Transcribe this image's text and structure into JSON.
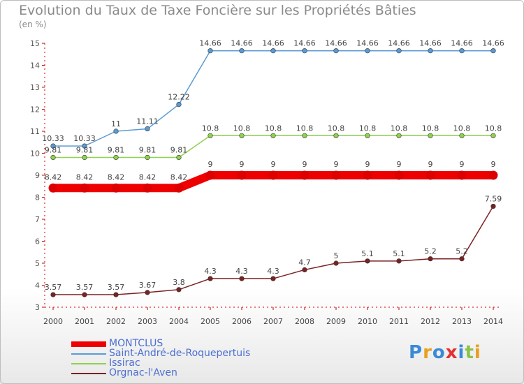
{
  "header": {
    "title": "Evolution du Taux de Taxe Foncière sur les Propriétés Bâties",
    "unit": "(en %)"
  },
  "logo": {
    "text": "Proxiti",
    "colors": [
      "#3a8ad8",
      "#e8a020",
      "#3a8ad8",
      "#e53030",
      "#3a8ad8",
      "#8bc34a",
      "#e8a020"
    ]
  },
  "chart_data": {
    "type": "line",
    "title": "Evolution du Taux de Taxe Foncière sur les Propriétés Bâties",
    "ylabel": "(en %)",
    "xlabel": "",
    "ylim": [
      3,
      15
    ],
    "yticks": [
      "3",
      "4",
      "5",
      "6",
      "7",
      "8",
      "9",
      "10",
      "11",
      "12",
      "13",
      "14",
      "15"
    ],
    "x": [
      "2000",
      "2001",
      "2002",
      "2003",
      "2004",
      "2005",
      "2006",
      "2007",
      "2008",
      "2009",
      "2010",
      "2011",
      "2012",
      "2013",
      "2014"
    ],
    "grid": false,
    "legend_position": "bottom-left",
    "series": [
      {
        "name": "Saint-André-de-Roquepertuis",
        "color": "#5b9bd5",
        "thick": false,
        "values": [
          10.33,
          10.33,
          11,
          11.11,
          12.22,
          14.66,
          14.66,
          14.66,
          14.66,
          14.66,
          14.66,
          14.66,
          14.66,
          14.66,
          14.66
        ],
        "labels": [
          "10.33",
          "10.33",
          "11",
          "11.11",
          "12.22",
          "14.66",
          "14.66",
          "14.66",
          "14.66",
          "14.66",
          "14.66",
          "14.66",
          "14.66",
          "14.66",
          "14.66"
        ]
      },
      {
        "name": "Issirac",
        "color": "#8fd14f",
        "thick": false,
        "values": [
          9.81,
          9.81,
          9.81,
          9.81,
          9.81,
          10.8,
          10.8,
          10.8,
          10.8,
          10.8,
          10.8,
          10.8,
          10.8,
          10.8,
          10.8
        ],
        "labels": [
          "9.81",
          "9.81",
          "9.81",
          "9.81",
          "9.81",
          "10.8",
          "10.8",
          "10.8",
          "10.8",
          "10.8",
          "10.8",
          "10.8",
          "10.8",
          "10.8",
          "10.8"
        ]
      },
      {
        "name": "MONTCLUS",
        "color": "#ee0000",
        "thick": true,
        "values": [
          8.42,
          8.42,
          8.42,
          8.42,
          8.42,
          9,
          9,
          9,
          9,
          9,
          9,
          9,
          9,
          9,
          9
        ],
        "labels": [
          "8.42",
          "8.42",
          "8.42",
          "8.42",
          "8.42",
          "9",
          "9",
          "9",
          "9",
          "9",
          "9",
          "9",
          "9",
          "9",
          "9"
        ]
      },
      {
        "name": "Orgnac-l'Aven",
        "color": "#7a2222",
        "thick": false,
        "values": [
          3.57,
          3.57,
          3.57,
          3.67,
          3.8,
          4.3,
          4.3,
          4.3,
          4.7,
          5,
          5.1,
          5.1,
          5.2,
          5.2,
          7.59
        ],
        "labels": [
          "3.57",
          "3.57",
          "3.57",
          "3.67",
          "3.8",
          "4.3",
          "4.3",
          "4.3",
          "4.7",
          "5",
          "5.1",
          "5.1",
          "5.2",
          "5.2",
          "7.59"
        ]
      }
    ],
    "legend": [
      {
        "name": "MONTCLUS",
        "color": "#ee0000",
        "thick": true
      },
      {
        "name": "Saint-André-de-Roquepertuis",
        "color": "#5b9bd5",
        "thick": false
      },
      {
        "name": "Issirac",
        "color": "#8fd14f",
        "thick": false
      },
      {
        "name": "Orgnac-l'Aven",
        "color": "#7a2222",
        "thick": false
      }
    ]
  }
}
